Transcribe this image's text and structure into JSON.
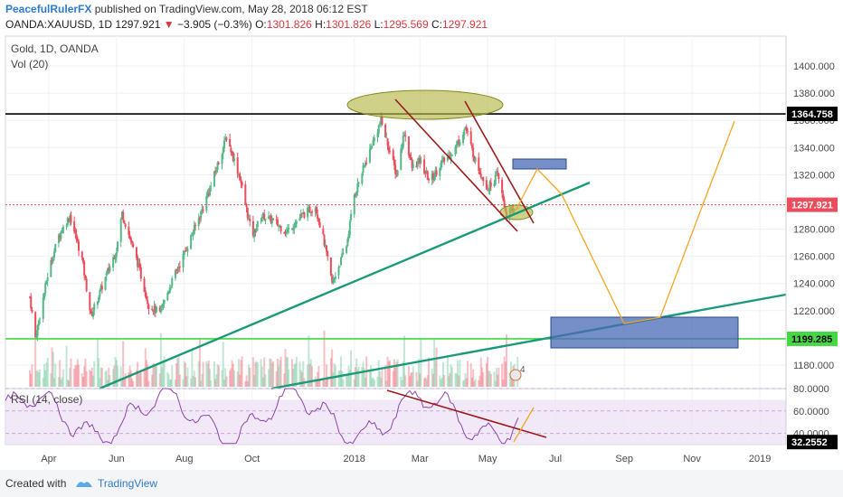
{
  "header": {
    "author": "PeacefulRulerFX",
    "published_text": "published on TradingView.com, May 28, 2018 06:12 EST",
    "symbol": "OANDA:XAUUSD, 1D",
    "last": "1297.921",
    "change": "−3.905 (−0.3%)",
    "open_label": "O:",
    "open": "1301.826",
    "high_label": "H:",
    "high": "1301.826",
    "low_label": "L:",
    "low": "1295.569",
    "close_label": "C:",
    "close": "1297.921"
  },
  "legend": {
    "title": "Gold, 1D, OANDA",
    "vol": "Vol (20)",
    "rsi": "RSI (14, close)"
  },
  "footer": {
    "created": "Created with",
    "brand": "TradingView"
  },
  "colors": {
    "up": "#53b987",
    "down": "#eb4d5c",
    "trend": "#1a9a78",
    "resistance": "#000000",
    "orange": "#f5a623",
    "box": "#4a6ab5",
    "rsi": "#8e44ad",
    "support": "#45d845"
  },
  "chart_data": [
    {
      "type": "line",
      "title": "Gold, 1D, OANDA",
      "y_axis_side": "right",
      "ylim": [
        1172,
        1410
      ],
      "y_ticks": [
        1180,
        1200,
        1220,
        1240,
        1260,
        1280,
        1300,
        1320,
        1340,
        1360,
        1380,
        1400
      ],
      "x_tick_labels": [
        "Apr",
        "Jun",
        "Aug",
        "Oct",
        "2018",
        "Mar",
        "May",
        "Jul",
        "Sep",
        "Nov",
        "2019"
      ],
      "series": [
        {
          "x": [
            "2017-03-15",
            "2017-03-20",
            "2017-04-01",
            "2017-04-10",
            "2017-04-20",
            "2017-05-01",
            "2017-05-09",
            "2017-05-20",
            "2017-06-01",
            "2017-06-06",
            "2017-06-20",
            "2017-06-30",
            "2017-07-10",
            "2017-07-20",
            "2017-08-01",
            "2017-08-15",
            "2017-08-25",
            "2017-09-08",
            "2017-09-20",
            "2017-10-01",
            "2017-10-10",
            "2017-10-20",
            "2017-11-01",
            "2017-11-15",
            "2017-11-27",
            "2017-12-05",
            "2017-12-12",
            "2017-12-25",
            "2018-01-01",
            "2018-01-15",
            "2018-01-25",
            "2018-02-08",
            "2018-02-15",
            "2018-02-22",
            "2018-03-01",
            "2018-03-10",
            "2018-03-20",
            "2018-04-01",
            "2018-04-11",
            "2018-04-20",
            "2018-05-01",
            "2018-05-10",
            "2018-05-18",
            "2018-05-21",
            "2018-05-28"
          ],
          "values": [
            1230,
            1200,
            1250,
            1275,
            1290,
            1258,
            1216,
            1240,
            1265,
            1292,
            1255,
            1224,
            1218,
            1240,
            1262,
            1290,
            1312,
            1348,
            1318,
            1275,
            1290,
            1286,
            1278,
            1290,
            1297,
            1270,
            1240,
            1268,
            1305,
            1338,
            1360,
            1320,
            1352,
            1325,
            1330,
            1315,
            1328,
            1338,
            1355,
            1330,
            1310,
            1320,
            1290,
            1292,
            1297.921
          ]
        }
      ],
      "price_labels": [
        "1364.758",
        "1297.921",
        "1199.285"
      ],
      "horizontal_levels": [
        1364.758,
        1199.285
      ],
      "last_price": 1297.921
    },
    {
      "type": "bar",
      "title": "Vol (20)",
      "volume_note": "4"
    },
    {
      "type": "line",
      "title": "RSI (14, close)",
      "ylim": [
        30,
        80
      ],
      "y_ticks": [
        40,
        60,
        80
      ],
      "y_tick_labels": [
        "40.0000",
        "60.0000",
        "80.0000"
      ],
      "last_value_label": "32.2552",
      "last_value": 32.2552
    }
  ]
}
